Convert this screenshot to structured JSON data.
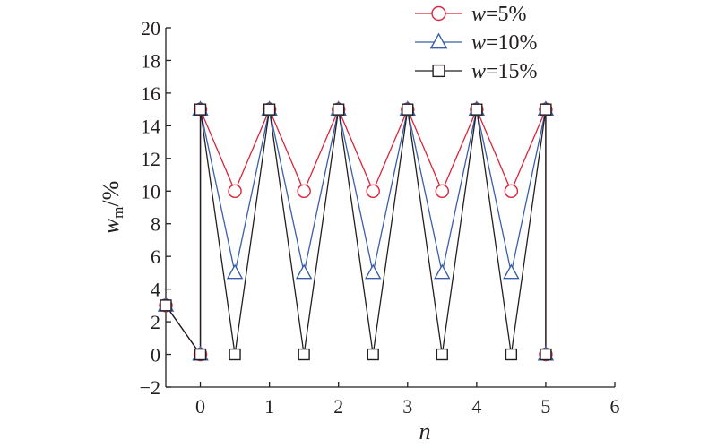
{
  "chart_data": {
    "type": "line",
    "xlabel": "n",
    "ylabel_var": "w",
    "ylabel_sub": "m",
    "ylabel_unit": "/%",
    "xlim": [
      -0.5,
      6
    ],
    "ylim": [
      -2,
      20
    ],
    "xticks": [
      0,
      1,
      2,
      3,
      4,
      5,
      6
    ],
    "yticks": [
      -2,
      0,
      2,
      4,
      6,
      8,
      10,
      12,
      14,
      16,
      18,
      20
    ],
    "xtick_labels": [
      "0",
      "1",
      "2",
      "3",
      "4",
      "5",
      "6"
    ],
    "ytick_labels": [
      "−2",
      "0",
      "2",
      "4",
      "6",
      "8",
      "10",
      "12",
      "14",
      "16",
      "18",
      "20"
    ],
    "grid": false,
    "legend_position": "top-right",
    "series": [
      {
        "name": "w=5%",
        "legend_var": "w",
        "legend_value": "=5%",
        "color": "#d7263d",
        "marker": "circle",
        "points": [
          [
            -0.5,
            3
          ],
          [
            0,
            0
          ],
          [
            0,
            15
          ],
          [
            0.5,
            10
          ],
          [
            1,
            15
          ],
          [
            1.5,
            10
          ],
          [
            2,
            15
          ],
          [
            2.5,
            10
          ],
          [
            3,
            15
          ],
          [
            3.5,
            10
          ],
          [
            4,
            15
          ],
          [
            4.5,
            10
          ],
          [
            5,
            15
          ],
          [
            5,
            0
          ]
        ]
      },
      {
        "name": "w=10%",
        "legend_var": "w",
        "legend_value": "=10%",
        "color": "#3a5fa8",
        "marker": "triangle",
        "points": [
          [
            -0.5,
            3
          ],
          [
            0,
            0
          ],
          [
            0,
            15
          ],
          [
            0.5,
            5
          ],
          [
            1,
            15
          ],
          [
            1.5,
            5
          ],
          [
            2,
            15
          ],
          [
            2.5,
            5
          ],
          [
            3,
            15
          ],
          [
            3.5,
            5
          ],
          [
            4,
            15
          ],
          [
            4.5,
            5
          ],
          [
            5,
            15
          ],
          [
            5,
            0
          ]
        ]
      },
      {
        "name": "w=15%",
        "legend_var": "w",
        "legend_value": "=15%",
        "color": "#231f20",
        "marker": "square",
        "points": [
          [
            -0.5,
            3
          ],
          [
            0,
            0
          ],
          [
            0,
            15
          ],
          [
            0.5,
            0
          ],
          [
            1,
            15
          ],
          [
            1.5,
            0
          ],
          [
            2,
            15
          ],
          [
            2.5,
            0
          ],
          [
            3,
            15
          ],
          [
            3.5,
            0
          ],
          [
            4,
            15
          ],
          [
            4.5,
            0
          ],
          [
            5,
            15
          ],
          [
            5,
            0
          ]
        ]
      }
    ]
  }
}
